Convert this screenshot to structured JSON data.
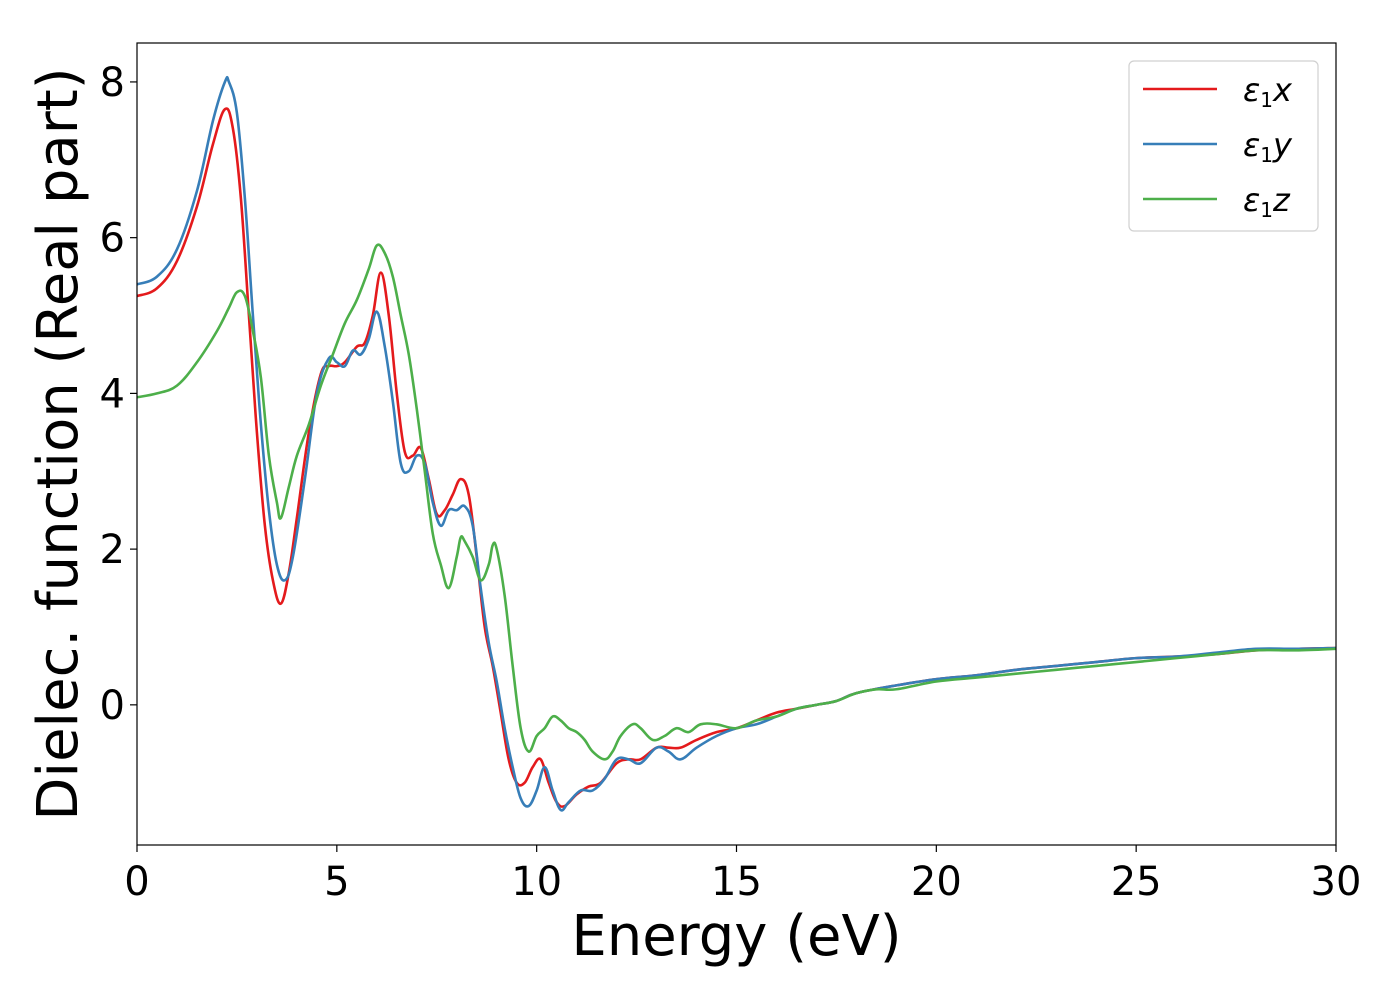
{
  "chart_data": {
    "type": "line",
    "xlabel": "Energy (eV)",
    "ylabel": "Dielec. function (Real part)",
    "xlim": [
      0,
      30
    ],
    "ylim": [
      -1.8,
      8.5
    ],
    "xticks": [
      0,
      5,
      10,
      15,
      20,
      25,
      30
    ],
    "yticks": [
      0,
      2,
      4,
      6,
      8
    ],
    "xtick_labels": [
      "0",
      "5",
      "10",
      "15",
      "20",
      "25",
      "30"
    ],
    "ytick_labels": [
      "0",
      "2",
      "4",
      "6",
      "8"
    ],
    "grid": false,
    "legend_position": "top-right",
    "series": [
      {
        "name": "ε1x",
        "legend": {
          "base": "ε",
          "sub": "1",
          "suffix": "x"
        },
        "color": "#e41a1c",
        "x": [
          0,
          0.5,
          1.0,
          1.5,
          1.9,
          2.2,
          2.4,
          2.6,
          2.8,
          3.0,
          3.2,
          3.4,
          3.6,
          3.8,
          4.0,
          4.3,
          4.6,
          4.8,
          5.0,
          5.2,
          5.5,
          5.7,
          5.9,
          6.1,
          6.3,
          6.5,
          6.7,
          6.9,
          7.1,
          7.3,
          7.5,
          7.7,
          7.9,
          8.1,
          8.3,
          8.5,
          8.7,
          8.9,
          9.1,
          9.3,
          9.5,
          9.7,
          9.9,
          10.1,
          10.3,
          10.5,
          10.7,
          11.0,
          11.3,
          11.6,
          12.0,
          12.3,
          12.6,
          13.0,
          13.3,
          13.6,
          14.0,
          14.5,
          15.0,
          15.5,
          16.0,
          16.5,
          17.0,
          17.5,
          18.0,
          19.0,
          20.0,
          21.0,
          22.0,
          23.0,
          24.0,
          25.0,
          26.0,
          27.0,
          28.0,
          29.0,
          30.0
        ],
        "y": [
          5.25,
          5.35,
          5.7,
          6.4,
          7.2,
          7.65,
          7.4,
          6.5,
          5.0,
          3.5,
          2.3,
          1.6,
          1.3,
          1.7,
          2.4,
          3.5,
          4.25,
          4.35,
          4.35,
          4.4,
          4.6,
          4.65,
          5.0,
          5.55,
          5.0,
          4.0,
          3.25,
          3.2,
          3.3,
          2.9,
          2.45,
          2.5,
          2.7,
          2.9,
          2.7,
          1.9,
          1.0,
          0.5,
          -0.1,
          -0.7,
          -1.0,
          -1.0,
          -0.8,
          -0.7,
          -1.0,
          -1.25,
          -1.3,
          -1.15,
          -1.05,
          -1.0,
          -0.75,
          -0.7,
          -0.7,
          -0.55,
          -0.55,
          -0.55,
          -0.45,
          -0.35,
          -0.3,
          -0.2,
          -0.1,
          -0.05,
          0.0,
          0.05,
          0.15,
          0.25,
          0.33,
          0.38,
          0.45,
          0.5,
          0.55,
          0.6,
          0.62,
          0.65,
          0.7,
          0.72,
          0.73
        ]
      },
      {
        "name": "ε1y",
        "legend": {
          "base": "ε",
          "sub": "1",
          "suffix": "y"
        },
        "color": "#377eb8",
        "x": [
          0,
          0.5,
          1.0,
          1.5,
          1.9,
          2.2,
          2.3,
          2.5,
          2.7,
          2.9,
          3.1,
          3.3,
          3.5,
          3.7,
          3.9,
          4.2,
          4.5,
          4.8,
          5.0,
          5.2,
          5.4,
          5.6,
          5.8,
          6.0,
          6.2,
          6.4,
          6.6,
          6.8,
          7.0,
          7.2,
          7.4,
          7.6,
          7.8,
          8.0,
          8.2,
          8.4,
          8.6,
          8.8,
          9.0,
          9.2,
          9.4,
          9.6,
          9.8,
          10.0,
          10.2,
          10.4,
          10.6,
          10.8,
          11.1,
          11.4,
          11.7,
          12.0,
          12.3,
          12.6,
          13.0,
          13.3,
          13.6,
          14.0,
          14.5,
          15.0,
          15.5,
          16.0,
          16.5,
          17.0,
          17.5,
          18.0,
          19.0,
          20.0,
          21.0,
          22.0,
          23.0,
          24.0,
          25.0,
          26.0,
          27.0,
          28.0,
          29.0,
          30.0
        ],
        "y": [
          5.4,
          5.5,
          5.85,
          6.6,
          7.5,
          8.0,
          8.0,
          7.6,
          6.5,
          5.0,
          3.6,
          2.5,
          1.8,
          1.6,
          1.9,
          2.9,
          4.0,
          4.45,
          4.4,
          4.35,
          4.55,
          4.5,
          4.7,
          5.05,
          4.6,
          3.9,
          3.1,
          3.0,
          3.2,
          3.1,
          2.6,
          2.3,
          2.5,
          2.5,
          2.55,
          2.3,
          1.5,
          0.8,
          0.3,
          -0.3,
          -0.8,
          -1.2,
          -1.3,
          -1.1,
          -0.8,
          -1.1,
          -1.35,
          -1.25,
          -1.1,
          -1.1,
          -0.95,
          -0.7,
          -0.7,
          -0.75,
          -0.55,
          -0.6,
          -0.7,
          -0.55,
          -0.4,
          -0.3,
          -0.25,
          -0.15,
          -0.05,
          0.0,
          0.05,
          0.15,
          0.25,
          0.33,
          0.38,
          0.45,
          0.5,
          0.55,
          0.6,
          0.62,
          0.67,
          0.72,
          0.72,
          0.73
        ]
      },
      {
        "name": "ε1z",
        "legend": {
          "base": "ε",
          "sub": "1",
          "suffix": "z"
        },
        "color": "#4daf4a",
        "x": [
          0,
          0.5,
          1.0,
          1.5,
          2.0,
          2.3,
          2.5,
          2.7,
          2.9,
          3.1,
          3.3,
          3.5,
          3.6,
          3.8,
          4.0,
          4.3,
          4.6,
          4.9,
          5.2,
          5.5,
          5.8,
          6.0,
          6.2,
          6.4,
          6.6,
          6.8,
          7.0,
          7.2,
          7.4,
          7.6,
          7.8,
          8.0,
          8.1,
          8.2,
          8.4,
          8.6,
          8.8,
          8.9,
          9.0,
          9.2,
          9.4,
          9.6,
          9.8,
          10.0,
          10.2,
          10.4,
          10.6,
          10.8,
          11.0,
          11.2,
          11.4,
          11.7,
          11.9,
          12.1,
          12.4,
          12.6,
          12.9,
          13.2,
          13.5,
          13.8,
          14.1,
          14.5,
          15.0,
          15.5,
          16.0,
          16.5,
          17.0,
          17.5,
          18.0,
          18.5,
          19.0,
          20.0,
          21.0,
          22.0,
          23.0,
          24.0,
          25.0,
          26.0,
          27.0,
          28.0,
          29.0,
          30.0
        ],
        "y": [
          3.95,
          4.0,
          4.1,
          4.4,
          4.8,
          5.1,
          5.3,
          5.25,
          4.8,
          4.2,
          3.2,
          2.6,
          2.4,
          2.8,
          3.2,
          3.6,
          4.1,
          4.5,
          4.9,
          5.2,
          5.6,
          5.9,
          5.8,
          5.5,
          5.0,
          4.5,
          3.8,
          3.0,
          2.2,
          1.8,
          1.5,
          1.9,
          2.15,
          2.1,
          1.9,
          1.6,
          1.8,
          2.05,
          2.0,
          1.4,
          0.5,
          -0.3,
          -0.6,
          -0.4,
          -0.3,
          -0.15,
          -0.2,
          -0.3,
          -0.35,
          -0.45,
          -0.6,
          -0.7,
          -0.6,
          -0.4,
          -0.25,
          -0.3,
          -0.45,
          -0.4,
          -0.3,
          -0.35,
          -0.25,
          -0.25,
          -0.3,
          -0.2,
          -0.15,
          -0.05,
          0.0,
          0.05,
          0.15,
          0.2,
          0.2,
          0.3,
          0.35,
          0.4,
          0.45,
          0.5,
          0.55,
          0.6,
          0.65,
          0.7,
          0.7,
          0.72
        ]
      }
    ]
  }
}
